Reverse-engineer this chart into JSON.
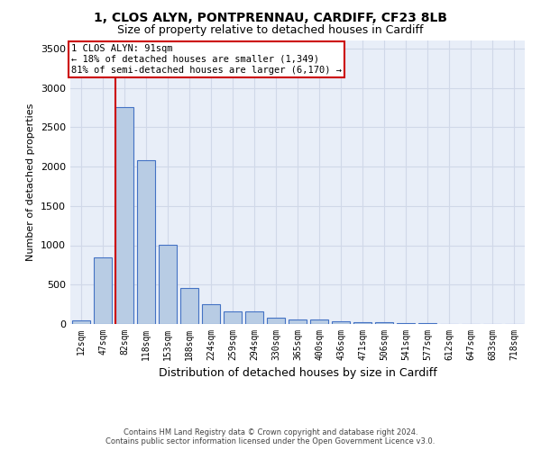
{
  "title1": "1, CLOS ALYN, PONTPRENNAU, CARDIFF, CF23 8LB",
  "title2": "Size of property relative to detached houses in Cardiff",
  "xlabel": "Distribution of detached houses by size in Cardiff",
  "ylabel": "Number of detached properties",
  "footer1": "Contains HM Land Registry data © Crown copyright and database right 2024.",
  "footer2": "Contains public sector information licensed under the Open Government Licence v3.0.",
  "categories": [
    "12sqm",
    "47sqm",
    "82sqm",
    "118sqm",
    "153sqm",
    "188sqm",
    "224sqm",
    "259sqm",
    "294sqm",
    "330sqm",
    "365sqm",
    "400sqm",
    "436sqm",
    "471sqm",
    "506sqm",
    "541sqm",
    "577sqm",
    "612sqm",
    "647sqm",
    "683sqm",
    "718sqm"
  ],
  "values": [
    50,
    850,
    2750,
    2080,
    1010,
    460,
    250,
    155,
    155,
    75,
    60,
    55,
    30,
    22,
    18,
    12,
    8,
    5,
    5,
    3,
    2
  ],
  "bar_color": "#b8cce4",
  "bar_edge_color": "#4472c4",
  "red_line_index": 2,
  "annotation_text": "1 CLOS ALYN: 91sqm\n← 18% of detached houses are smaller (1,349)\n81% of semi-detached houses are larger (6,170) →",
  "annotation_box_color": "#ffffff",
  "annotation_box_edge": "#cc0000",
  "red_line_color": "#cc0000",
  "ylim": [
    0,
    3600
  ],
  "yticks": [
    0,
    500,
    1000,
    1500,
    2000,
    2500,
    3000,
    3500
  ],
  "grid_color": "#d0d8e8",
  "background_color": "#e8eef8",
  "title1_fontsize": 10,
  "title2_fontsize": 9,
  "bar_width": 0.8
}
